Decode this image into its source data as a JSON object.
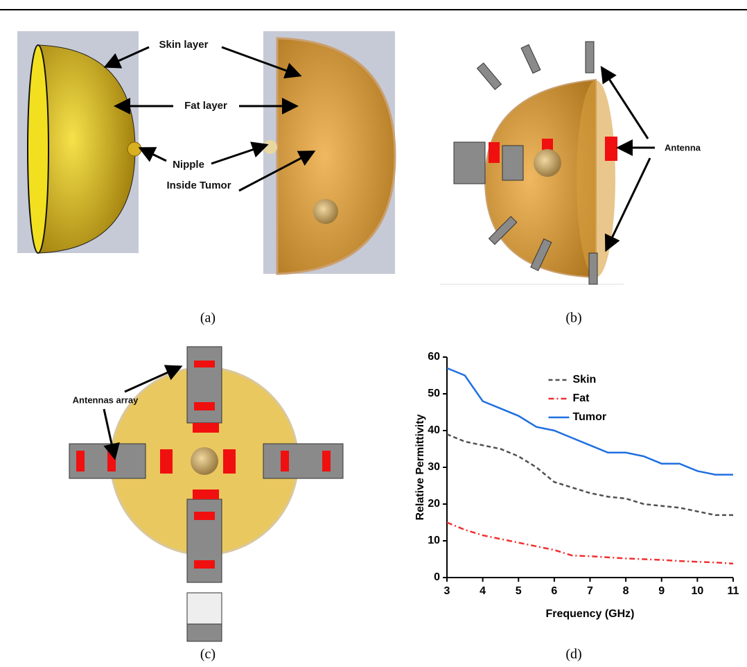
{
  "panels": [
    {
      "label": "(a)",
      "annotations": [
        "Skin layer",
        "Fat layer",
        "Nipple",
        "Inside Tumor"
      ]
    },
    {
      "label": "(b)",
      "annotations": [
        "Antenna"
      ]
    },
    {
      "label": "(c)",
      "annotations": [
        "Antennas array"
      ]
    },
    {
      "label": "(d)"
    }
  ],
  "chart_data": {
    "type": "line",
    "xlabel": "Frequency (GHz)",
    "ylabel": "Relative Permittivity",
    "x": [
      3,
      3.5,
      4,
      4.5,
      5,
      5.5,
      6,
      6.5,
      7,
      7.5,
      8,
      8.5,
      9,
      9.5,
      10,
      10.5,
      11
    ],
    "series": [
      {
        "name": "Skin",
        "color": "#505050",
        "style": "dashed",
        "values": [
          39,
          37,
          36,
          35,
          33,
          30,
          26,
          24.5,
          23,
          22,
          21.5,
          20,
          19.5,
          19,
          18,
          17,
          17
        ]
      },
      {
        "name": "Fat",
        "color": "#f03030",
        "style": "dashdot",
        "values": [
          15,
          13,
          11.5,
          10.5,
          9.5,
          8.5,
          7.5,
          6,
          5.8,
          5.5,
          5.2,
          5,
          4.8,
          4.5,
          4.3,
          4.1,
          3.8
        ]
      },
      {
        "name": "Tumor",
        "color": "#1f6fe0",
        "style": "solid",
        "values": [
          57,
          55,
          48,
          46,
          44,
          41,
          40,
          38,
          36,
          34,
          34,
          33,
          31,
          31,
          29,
          28,
          28
        ]
      }
    ],
    "xlim": [
      3,
      11
    ],
    "xticks": [
      3,
      4,
      5,
      6,
      7,
      8,
      9,
      10,
      11
    ],
    "ylim": [
      0,
      60
    ],
    "yticks": [
      0,
      10,
      20,
      30,
      40,
      50,
      60
    ],
    "legend": "upper center"
  }
}
